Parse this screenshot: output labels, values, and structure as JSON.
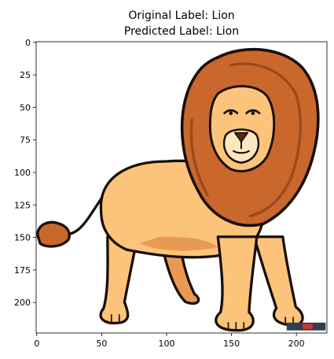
{
  "chart_data": {
    "type": "image",
    "title_lines": [
      "Original Label: Lion",
      "Predicted Label: Lion"
    ],
    "image_size": [
      224,
      224
    ],
    "xlim": [
      -0.5,
      223.5
    ],
    "ylim": [
      223.5,
      -0.5
    ],
    "x_ticks": [
      0,
      50,
      100,
      150,
      200
    ],
    "y_ticks": [
      0,
      25,
      50,
      75,
      100,
      125,
      150,
      175,
      200
    ],
    "grid": false,
    "colors": {
      "body": "#fbc47a",
      "body_shadow": "#e89a52",
      "mane": "#c9672c",
      "mane_dark": "#9a4a1d",
      "outline": "#1a0f08",
      "muzzle": "#fde7bf"
    }
  }
}
